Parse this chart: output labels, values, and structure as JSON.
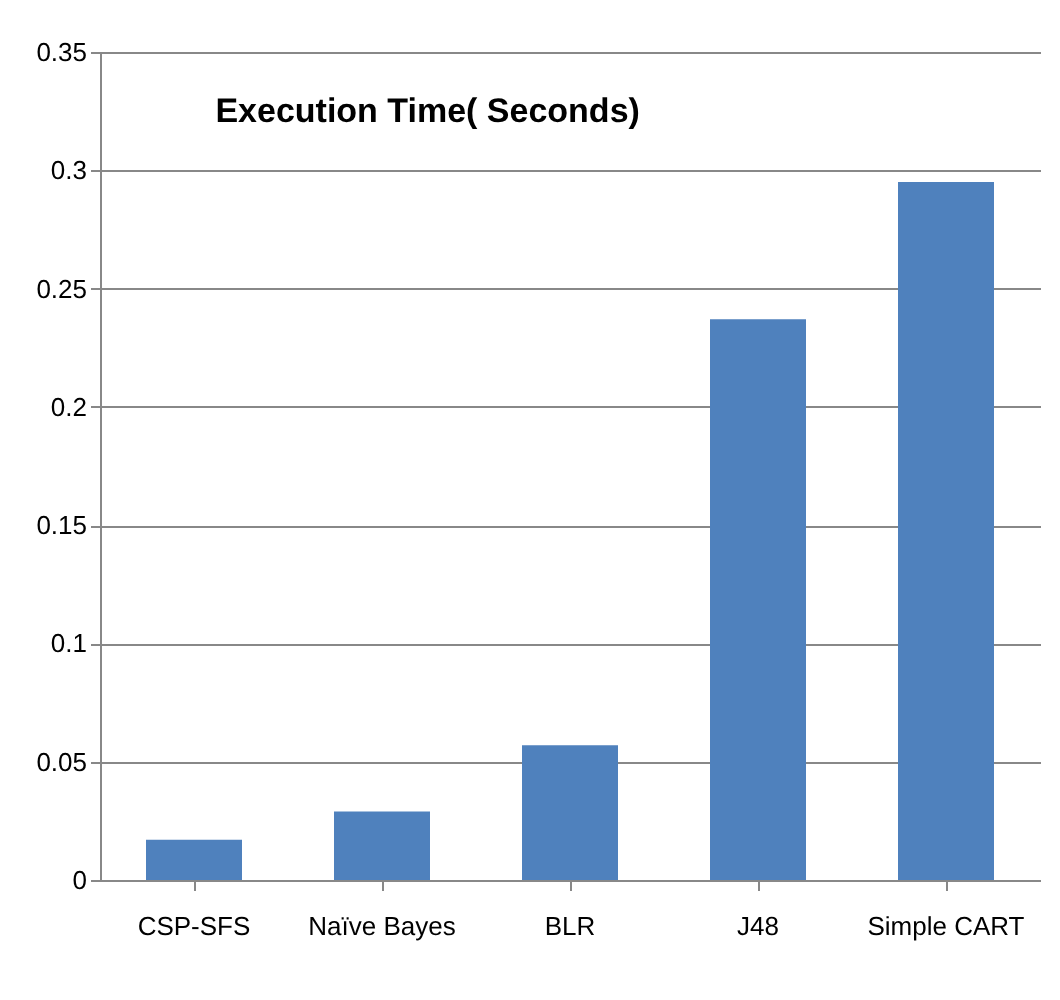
{
  "chart_data": {
    "type": "bar",
    "title": "Execution Time( Seconds)",
    "categories": [
      "CSP-SFS",
      "Naïve Bayes",
      "BLR",
      "J48",
      "Simple CART"
    ],
    "values": [
      0.017,
      0.029,
      0.057,
      0.237,
      0.295
    ],
    "color": "#4f81bd",
    "ylim": [
      0,
      0.35
    ],
    "yticks": [
      0,
      0.05,
      0.1,
      0.15,
      0.2,
      0.25,
      0.3,
      0.35
    ],
    "grid": "y"
  }
}
